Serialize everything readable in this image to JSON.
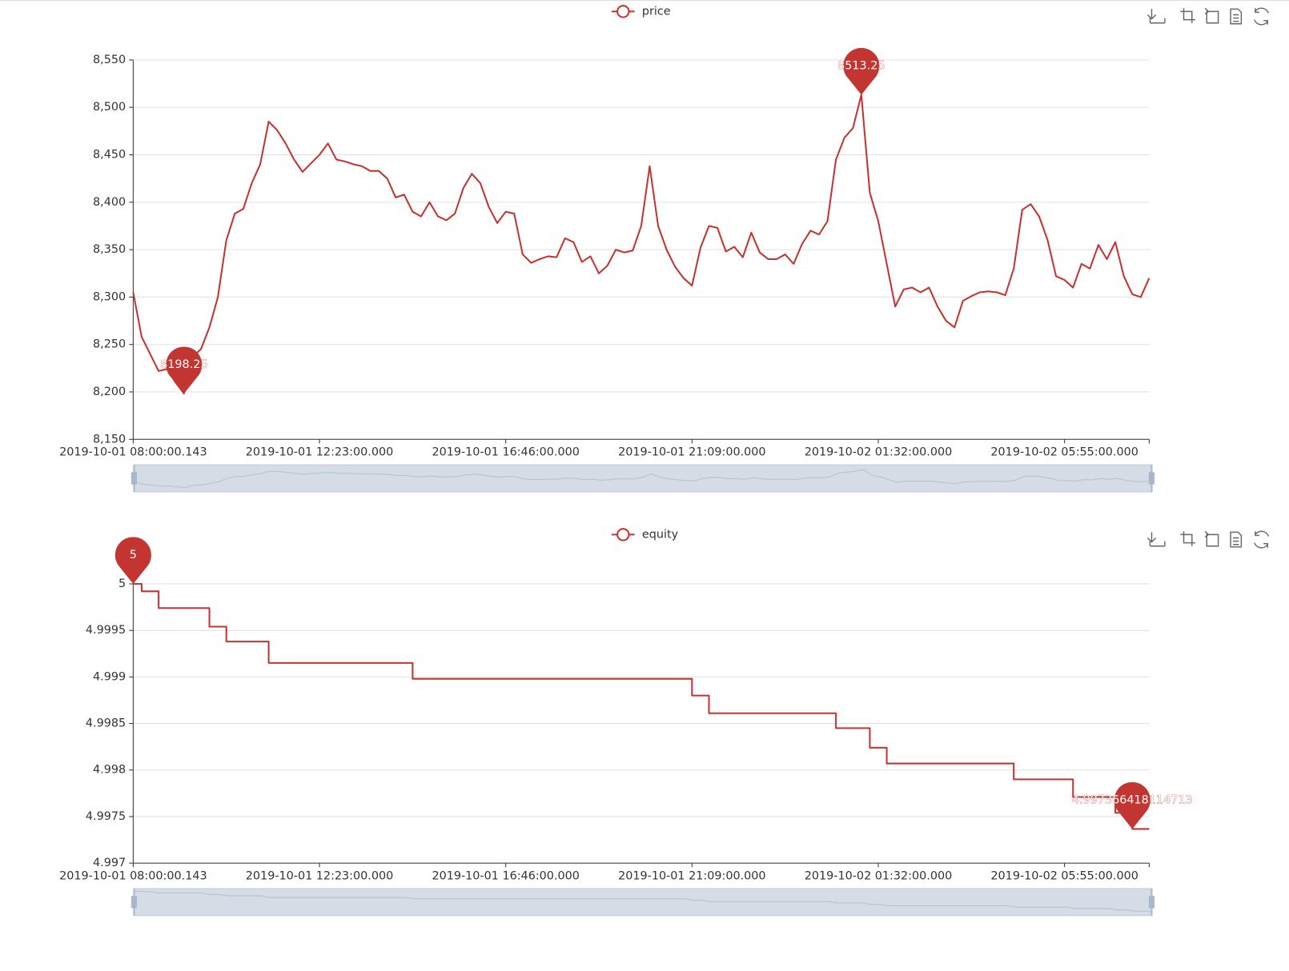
{
  "chart_data": [
    {
      "type": "line",
      "color": "#c23531",
      "grid": true,
      "mark_points": [
        "max",
        "min"
      ],
      "categories": [
        "2019-10-01 08:00:00.143",
        null,
        null,
        null,
        null,
        null,
        null,
        null,
        null,
        null,
        null,
        null,
        null,
        null,
        null,
        null,
        null,
        null,
        null,
        null,
        null,
        null,
        "2019-10-01 12:23:00.000",
        null,
        null,
        null,
        null,
        null,
        null,
        null,
        null,
        null,
        null,
        null,
        null,
        null,
        null,
        null,
        null,
        null,
        null,
        null,
        null,
        null,
        "2019-10-01 16:46:00.000",
        null,
        null,
        null,
        null,
        null,
        null,
        null,
        null,
        null,
        null,
        null,
        null,
        null,
        null,
        null,
        null,
        null,
        null,
        null,
        null,
        null,
        "2019-10-01 21:09:00.000",
        null,
        null,
        null,
        null,
        null,
        null,
        null,
        null,
        null,
        null,
        null,
        null,
        null,
        null,
        null,
        null,
        null,
        null,
        null,
        null,
        null,
        "2019-10-02 01:32:00.000",
        null,
        null,
        null,
        null,
        null,
        null,
        null,
        null,
        null,
        null,
        null,
        null,
        null,
        null,
        null,
        null,
        null,
        null,
        null,
        null,
        null,
        "2019-10-02 05:55:00.000",
        null,
        null,
        null,
        null,
        null,
        null,
        null,
        null,
        null,
        null
      ],
      "series": [
        {
          "name": "price",
          "color": "#c23531",
          "values": [
            8305,
            8258,
            8240,
            8222,
            8224,
            8210,
            8198.25,
            8237,
            8245,
            8268,
            8300,
            8360,
            8388,
            8393,
            8420,
            8440,
            8485,
            8476,
            8462,
            8445,
            8432,
            8441,
            8450,
            8462,
            8445,
            8443,
            8440,
            8438,
            8433,
            8433,
            8425,
            8405,
            8408,
            8390,
            8385,
            8400,
            8385,
            8381,
            8388,
            8415,
            8430,
            8420,
            8395,
            8378,
            8390,
            8388,
            8345,
            8336,
            8340,
            8343,
            8342,
            8362,
            8358,
            8337,
            8343,
            8325,
            8333,
            8350,
            8347,
            8349,
            8375,
            8438,
            8375,
            8350,
            8332,
            8320,
            8312,
            8352,
            8375,
            8373,
            8348,
            8353,
            8342,
            8368,
            8347,
            8340,
            8340,
            8345,
            8335,
            8356,
            8370,
            8366,
            8380,
            8445,
            8468,
            8478,
            8513.25,
            8410,
            8380,
            8335,
            8290,
            8308,
            8310,
            8305,
            8310,
            8290,
            8275,
            8268,
            8296,
            8301,
            8305,
            8306,
            8305,
            8302,
            8330,
            8392,
            8398,
            8385,
            8360,
            8322,
            8318,
            8310,
            8335,
            8330,
            8355,
            8340,
            8358,
            8322,
            8303,
            8300,
            8320
          ]
        }
      ],
      "ylim": [
        8150,
        8550
      ],
      "yticks": [
        {
          "value": 8150,
          "label": "8,150"
        },
        {
          "value": 8200,
          "label": "8,200"
        },
        {
          "value": 8250,
          "label": "8,250"
        },
        {
          "value": 8300,
          "label": "8,300"
        },
        {
          "value": 8350,
          "label": "8,350"
        },
        {
          "value": 8400,
          "label": "8,400"
        },
        {
          "value": 8450,
          "label": "8,450"
        },
        {
          "value": 8500,
          "label": "8,500"
        },
        {
          "value": 8550,
          "label": "8,550"
        }
      ]
    },
    {
      "type": "line",
      "step": "end",
      "color": "#c23531",
      "grid": true,
      "mark_points": [
        "max",
        "min"
      ],
      "categories": [
        "2019-10-01 08:00:00.143",
        null,
        null,
        null,
        null,
        null,
        null,
        null,
        null,
        null,
        null,
        null,
        null,
        null,
        null,
        null,
        null,
        null,
        null,
        null,
        null,
        null,
        "2019-10-01 12:23:00.000",
        null,
        null,
        null,
        null,
        null,
        null,
        null,
        null,
        null,
        null,
        null,
        null,
        null,
        null,
        null,
        null,
        null,
        null,
        null,
        null,
        null,
        "2019-10-01 16:46:00.000",
        null,
        null,
        null,
        null,
        null,
        null,
        null,
        null,
        null,
        null,
        null,
        null,
        null,
        null,
        null,
        null,
        null,
        null,
        null,
        null,
        null,
        "2019-10-01 21:09:00.000",
        null,
        null,
        null,
        null,
        null,
        null,
        null,
        null,
        null,
        null,
        null,
        null,
        null,
        null,
        null,
        null,
        null,
        null,
        null,
        null,
        null,
        "2019-10-02 01:32:00.000",
        null,
        null,
        null,
        null,
        null,
        null,
        null,
        null,
        null,
        null,
        null,
        null,
        null,
        null,
        null,
        null,
        null,
        null,
        null,
        null,
        null,
        "2019-10-02 05:55:00.000",
        null,
        null,
        null,
        null,
        null,
        null,
        null,
        null,
        null,
        null
      ],
      "series": [
        {
          "name": "equity",
          "color": "#c23531",
          "values": [
            5,
            4.99992,
            4.99992,
            4.99974,
            4.99974,
            4.99974,
            4.99974,
            4.99974,
            4.99974,
            4.99954,
            4.99954,
            4.99938,
            4.99938,
            4.99938,
            4.99938,
            4.99938,
            4.99915,
            4.99915,
            4.99915,
            4.99915,
            4.99915,
            4.99915,
            4.99915,
            4.99915,
            4.99915,
            4.99915,
            4.99915,
            4.99915,
            4.99915,
            4.99915,
            4.99915,
            4.99915,
            4.99915,
            4.99898,
            4.99898,
            4.99898,
            4.99898,
            4.99898,
            4.99898,
            4.99898,
            4.99898,
            4.99898,
            4.99898,
            4.99898,
            4.99898,
            4.99898,
            4.99898,
            4.99898,
            4.99898,
            4.99898,
            4.99898,
            4.99898,
            4.99898,
            4.99898,
            4.99898,
            4.99898,
            4.99898,
            4.99898,
            4.99898,
            4.99898,
            4.99898,
            4.99898,
            4.99898,
            4.99898,
            4.99898,
            4.99898,
            4.9988,
            4.9988,
            4.99861,
            4.99861,
            4.99861,
            4.99861,
            4.99861,
            4.99861,
            4.99861,
            4.99861,
            4.99861,
            4.99861,
            4.99861,
            4.99861,
            4.99861,
            4.99861,
            4.99861,
            4.99845,
            4.99845,
            4.99845,
            4.99845,
            4.99824,
            4.99824,
            4.99807,
            4.99807,
            4.99807,
            4.99807,
            4.99807,
            4.99807,
            4.99807,
            4.99807,
            4.99807,
            4.99807,
            4.99807,
            4.99807,
            4.99807,
            4.99807,
            4.99807,
            4.9979,
            4.9979,
            4.9979,
            4.9979,
            4.9979,
            4.9979,
            4.9979,
            4.99771,
            4.99771,
            4.99771,
            4.99771,
            4.99771,
            4.99754,
            4.99754,
            4.997366418114713,
            4.997366418114713,
            4.997366418114713
          ]
        }
      ],
      "ylim": [
        4.997,
        5
      ],
      "yticks": [
        4.997,
        4.9975,
        4.998,
        4.9985,
        4.999,
        4.9995,
        5
      ]
    }
  ]
}
